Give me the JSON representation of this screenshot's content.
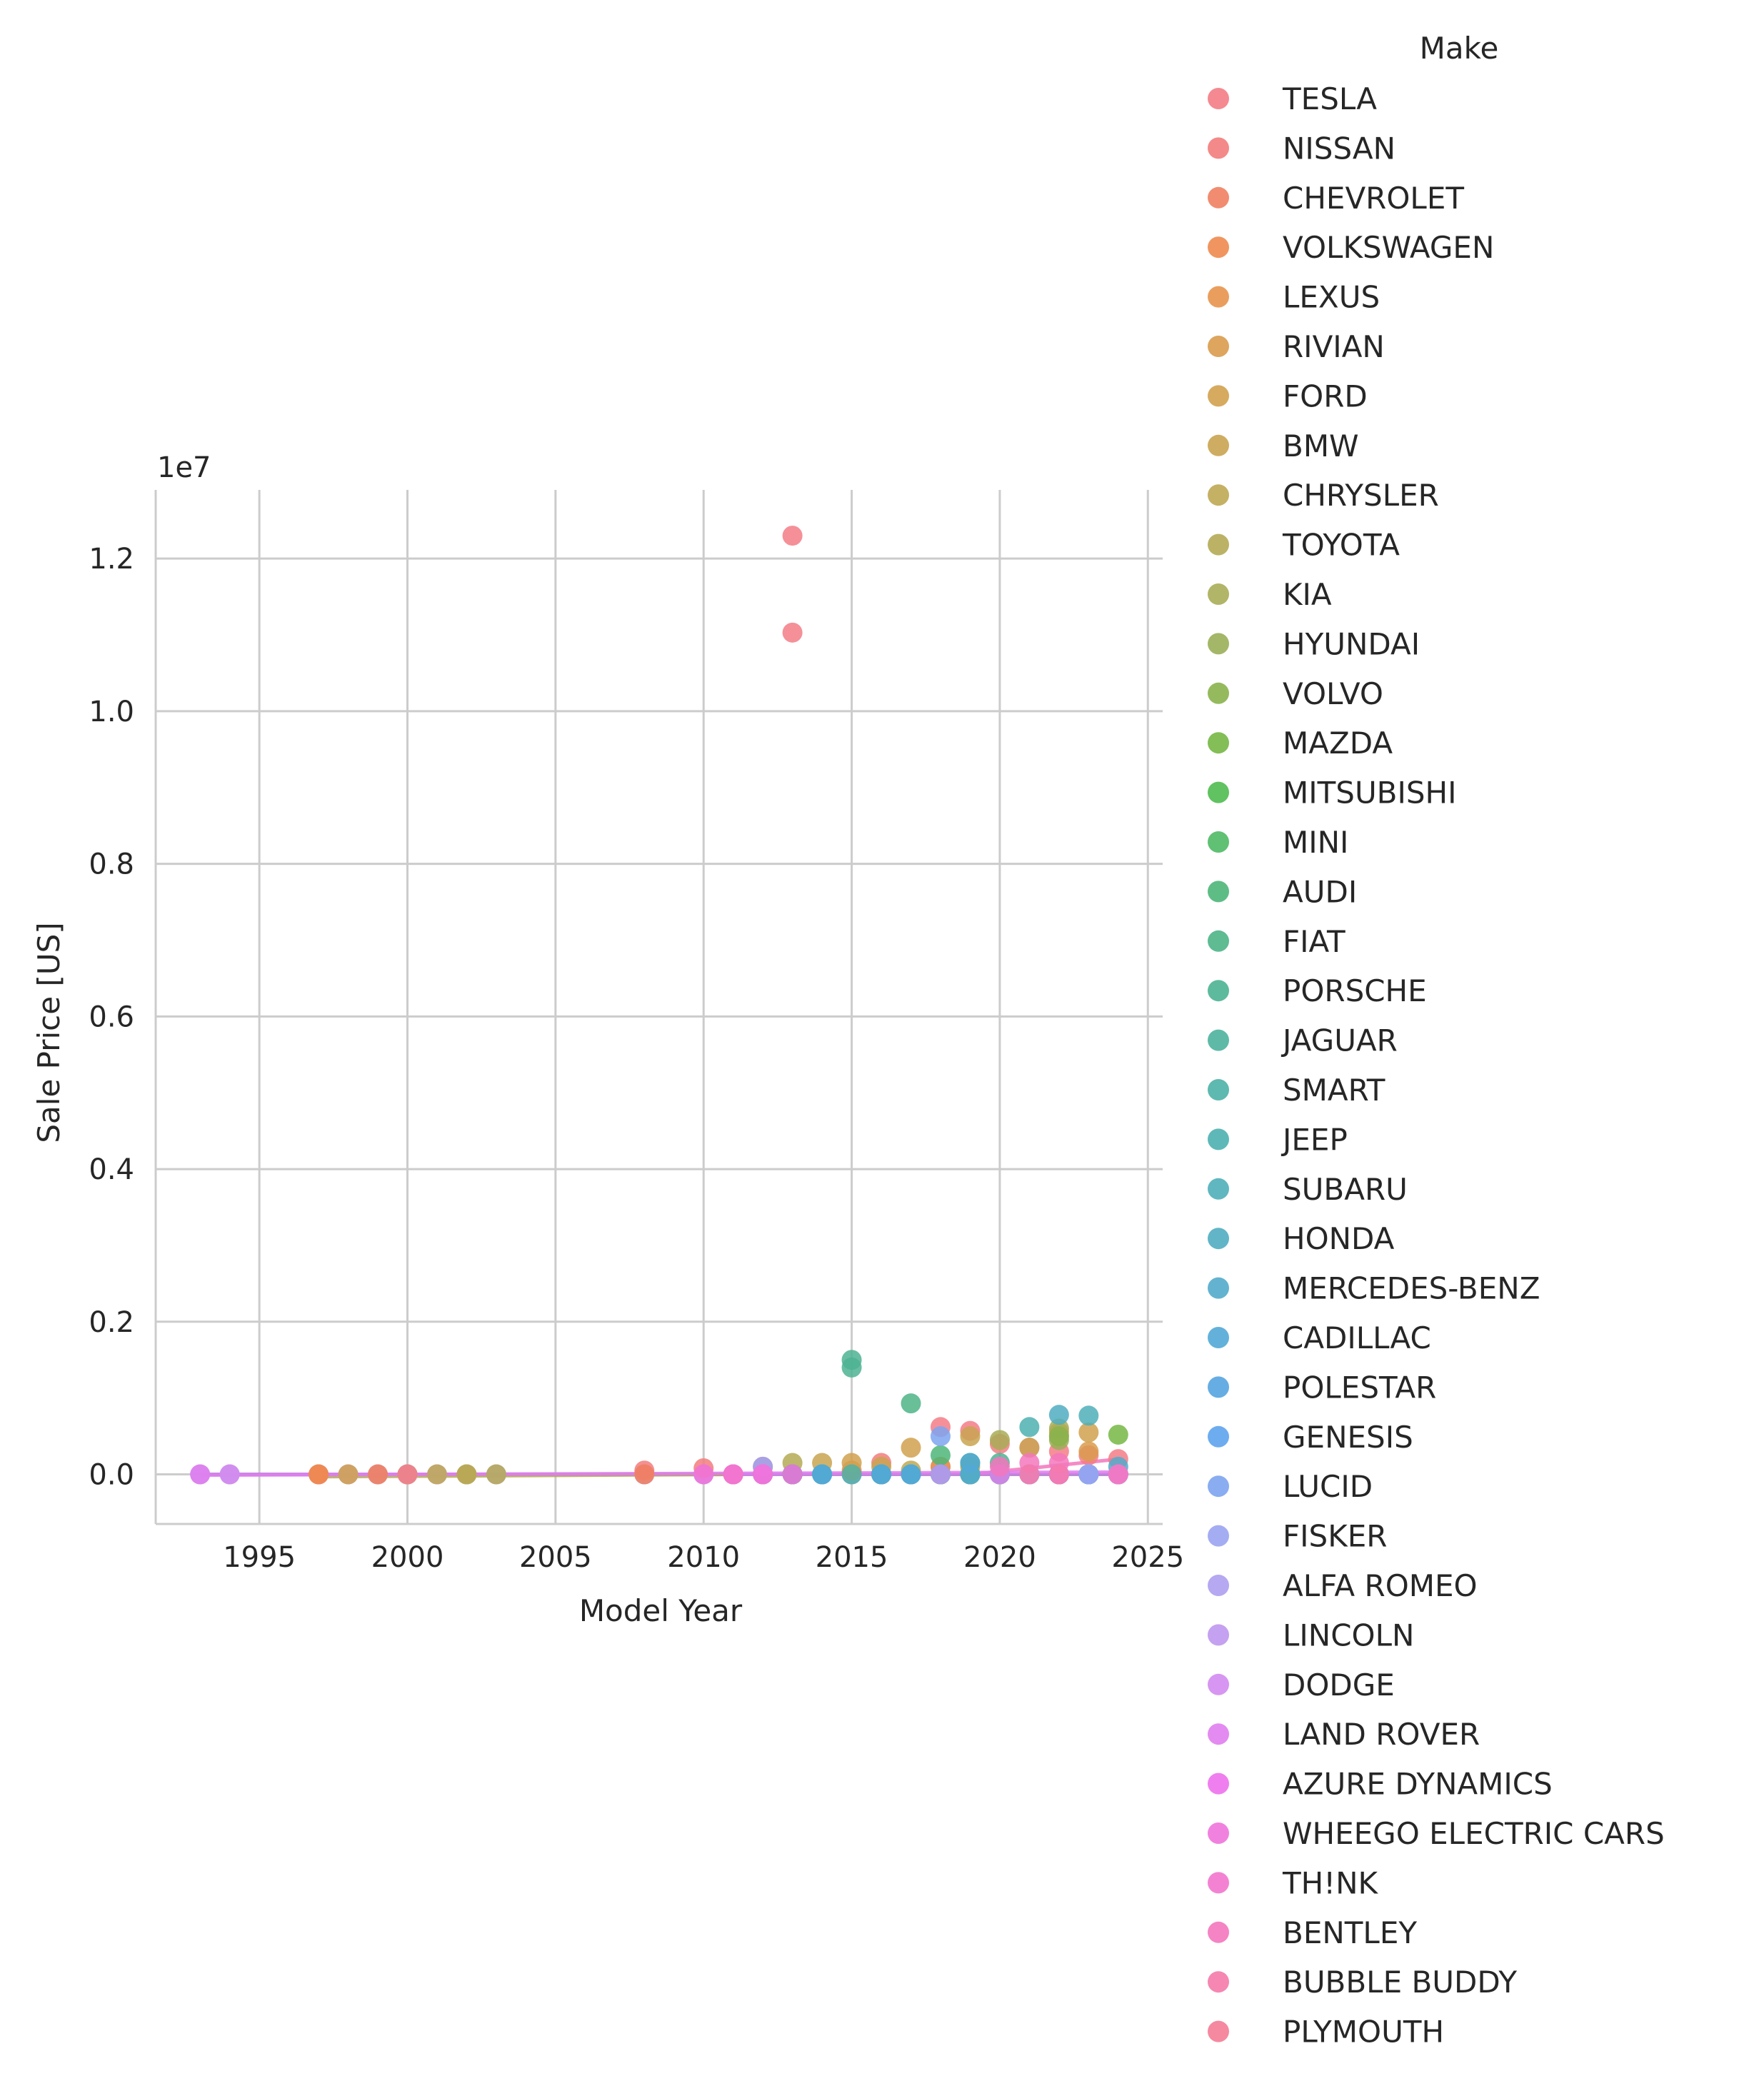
{
  "chart_data": {
    "type": "scatter",
    "title": "",
    "xlabel": "Model Year",
    "ylabel": "Sale Price [US]",
    "y_offset_text": "1e7",
    "y_scale": 10000000,
    "xlim": [
      1991.5,
      2025.5
    ],
    "ylim": [
      -0.065,
      1.29
    ],
    "xticks": [
      1995,
      2000,
      2005,
      2010,
      2015,
      2020,
      2025
    ],
    "yticks": [
      0.0,
      0.2,
      0.4,
      0.6,
      0.8,
      1.0,
      1.2
    ],
    "ytick_labels": [
      "0.0",
      "0.2",
      "0.4",
      "0.6",
      "0.8",
      "1.0",
      "1.2"
    ],
    "grid": true,
    "legend_title": "Make",
    "legend_position": "right",
    "series": [
      {
        "name": "TESLA",
        "color": "#f37c86",
        "points": [
          [
            2013,
            1.23
          ],
          [
            2013,
            1.103
          ],
          [
            2018,
            0.062
          ],
          [
            2019,
            0.057
          ],
          [
            2020,
            0.04
          ],
          [
            2021,
            0.035
          ],
          [
            2022,
            0.03
          ],
          [
            2023,
            0.025
          ],
          [
            2024,
            0.02
          ],
          [
            2012,
            0.01
          ]
        ]
      },
      {
        "name": "NISSAN",
        "color": "#f37c7c",
        "points": [
          [
            2008,
            0.005
          ],
          [
            2010,
            0.008
          ],
          [
            2011,
            0.0
          ],
          [
            2012,
            0.0
          ],
          [
            2013,
            0.0
          ],
          [
            2016,
            0.015
          ],
          [
            2018,
            0.01
          ],
          [
            2019,
            0.0
          ],
          [
            2022,
            0.0
          ]
        ]
      },
      {
        "name": "CHEVROLET",
        "color": "#f08060",
        "points": [
          [
            1997,
            0.0
          ],
          [
            2008,
            0.0
          ],
          [
            2011,
            0.0
          ],
          [
            2013,
            0.0
          ],
          [
            2016,
            0.0
          ],
          [
            2017,
            0.0
          ],
          [
            2019,
            0.0
          ],
          [
            2022,
            0.0
          ]
        ]
      },
      {
        "name": "VOLKSWAGEN",
        "color": "#ee8a4f",
        "points": [
          [
            1997,
            0.0
          ],
          [
            2015,
            0.005
          ],
          [
            2016,
            0.0
          ],
          [
            2019,
            0.0
          ],
          [
            2022,
            0.0
          ]
        ]
      },
      {
        "name": "LEXUS",
        "color": "#e8934d",
        "points": [
          [
            2018,
            0.01
          ],
          [
            2019,
            0.0
          ],
          [
            2022,
            0.0
          ]
        ]
      },
      {
        "name": "RIVIAN",
        "color": "#d99b4d",
        "points": [
          [
            2022,
            0.05
          ],
          [
            2023,
            0.03
          ],
          [
            2024,
            0.0
          ]
        ]
      },
      {
        "name": "FORD",
        "color": "#d1a14e",
        "points": [
          [
            1998,
            0.0
          ],
          [
            2000,
            0.0
          ],
          [
            2002,
            0.0
          ],
          [
            2015,
            0.015
          ],
          [
            2017,
            0.035
          ],
          [
            2022,
            0.055
          ],
          [
            2023,
            0.055
          ]
        ]
      },
      {
        "name": "BMW",
        "color": "#c9a451",
        "points": [
          [
            2014,
            0.015
          ],
          [
            2016,
            0.01
          ],
          [
            2019,
            0.05
          ],
          [
            2021,
            0.035
          ]
        ]
      },
      {
        "name": "CHRYSLER",
        "color": "#bfa853",
        "points": [
          [
            2001,
            0.0
          ],
          [
            2017,
            0.005
          ],
          [
            2019,
            0.01
          ],
          [
            2022,
            0.0
          ]
        ]
      },
      {
        "name": "TOYOTA",
        "color": "#b5aa55",
        "points": [
          [
            2000,
            0.0
          ],
          [
            2002,
            0.0
          ],
          [
            2003,
            0.0
          ],
          [
            2013,
            0.015
          ],
          [
            2019,
            0.0
          ],
          [
            2021,
            0.0
          ]
        ]
      },
      {
        "name": "KIA",
        "color": "#a8ad56",
        "points": [
          [
            2018,
            0.0
          ],
          [
            2019,
            0.0
          ],
          [
            2020,
            0.045
          ],
          [
            2022,
            0.06
          ]
        ]
      },
      {
        "name": "HYUNDAI",
        "color": "#9aaf58",
        "points": [
          [
            2019,
            0.0
          ],
          [
            2022,
            0.045
          ],
          [
            2023,
            0.0
          ]
        ]
      },
      {
        "name": "VOLVO",
        "color": "#89b34c",
        "points": [
          [
            2018,
            0.0
          ],
          [
            2022,
            0.05
          ],
          [
            2023,
            0.0
          ]
        ]
      },
      {
        "name": "MAZDA",
        "color": "#75b744",
        "points": [
          [
            2021,
            0.0
          ],
          [
            2024,
            0.052
          ]
        ]
      },
      {
        "name": "MITSUBISHI",
        "color": "#4fbb4f",
        "points": [
          [
            2012,
            0.0
          ],
          [
            2018,
            0.0
          ],
          [
            2022,
            0.0
          ]
        ]
      },
      {
        "name": "MINI",
        "color": "#4fb965",
        "points": [
          [
            2018,
            0.0
          ],
          [
            2020,
            0.0
          ],
          [
            2022,
            0.0
          ]
        ]
      },
      {
        "name": "AUDI",
        "color": "#4db678",
        "points": [
          [
            2016,
            0.0
          ],
          [
            2018,
            0.025
          ],
          [
            2019,
            0.015
          ],
          [
            2022,
            0.0
          ]
        ]
      },
      {
        "name": "FIAT",
        "color": "#4db486",
        "points": [
          [
            2013,
            0.0
          ],
          [
            2014,
            0.0
          ],
          [
            2016,
            0.0
          ],
          [
            2017,
            0.093
          ]
        ]
      },
      {
        "name": "PORSCHE",
        "color": "#4db392",
        "points": [
          [
            2015,
            0.15
          ],
          [
            2015,
            0.14
          ],
          [
            2020,
            0.015
          ],
          [
            2022,
            0.0
          ]
        ]
      },
      {
        "name": "JAGUAR",
        "color": "#4db29d",
        "points": [
          [
            2019,
            0.0
          ],
          [
            2020,
            0.0
          ]
        ]
      },
      {
        "name": "SMART",
        "color": "#4db1a7",
        "points": [
          [
            2013,
            0.0
          ],
          [
            2015,
            0.0
          ],
          [
            2017,
            0.0
          ],
          [
            2018,
            0.0
          ]
        ]
      },
      {
        "name": "JEEP",
        "color": "#4eb0b0",
        "points": [
          [
            2021,
            0.062
          ],
          [
            2022,
            0.0
          ],
          [
            2023,
            0.0
          ]
        ]
      },
      {
        "name": "SUBARU",
        "color": "#4fafb9",
        "points": [
          [
            2019,
            0.0
          ],
          [
            2023,
            0.077
          ]
        ]
      },
      {
        "name": "HONDA",
        "color": "#50adc1",
        "points": [
          [
            2014,
            0.0
          ],
          [
            2022,
            0.078
          ],
          [
            2024,
            0.0
          ]
        ]
      },
      {
        "name": "MERCEDES-BENZ",
        "color": "#52abcb",
        "points": [
          [
            2014,
            0.0
          ],
          [
            2016,
            0.0
          ],
          [
            2017,
            0.0
          ],
          [
            2018,
            0.0
          ],
          [
            2019,
            0.0
          ],
          [
            2022,
            0.0
          ],
          [
            2024,
            0.01
          ]
        ]
      },
      {
        "name": "CADILLAC",
        "color": "#52a8d6",
        "points": [
          [
            2014,
            0.0
          ],
          [
            2016,
            0.0
          ],
          [
            2017,
            0.0
          ],
          [
            2019,
            0.015
          ],
          [
            2023,
            0.0
          ]
        ]
      },
      {
        "name": "POLESTAR",
        "color": "#55a4e0",
        "points": [
          [
            2021,
            0.0
          ],
          [
            2022,
            0.0
          ],
          [
            2024,
            0.0
          ]
        ]
      },
      {
        "name": "GENESIS",
        "color": "#5ea3ee",
        "points": [
          [
            2023,
            0.0
          ],
          [
            2024,
            0.0
          ]
        ]
      },
      {
        "name": "LUCID",
        "color": "#7da4f0",
        "points": [
          [
            2018,
            0.05
          ],
          [
            2022,
            0.0
          ],
          [
            2023,
            0.0
          ]
        ]
      },
      {
        "name": "FISKER",
        "color": "#9aa4f1",
        "points": [
          [
            2012,
            0.01
          ],
          [
            2023,
            0.0
          ]
        ]
      },
      {
        "name": "ALFA ROMEO",
        "color": "#ae9ef0",
        "points": [
          [
            2024,
            0.0
          ]
        ]
      },
      {
        "name": "LINCOLN",
        "color": "#bf97ef",
        "points": [
          [
            2018,
            0.0
          ],
          [
            2021,
            0.0
          ],
          [
            2022,
            0.0
          ]
        ]
      },
      {
        "name": "DODGE",
        "color": "#d38bef",
        "points": [
          [
            2024,
            0.0
          ]
        ]
      },
      {
        "name": "LAND ROVER",
        "color": "#e07ef0",
        "points": [
          [
            2020,
            0.0
          ],
          [
            2022,
            0.0
          ]
        ]
      },
      {
        "name": "AZURE DYNAMICS",
        "color": "#ed71ed",
        "points": [
          [
            2011,
            0.0
          ],
          [
            2012,
            0.0
          ]
        ]
      },
      {
        "name": "WHEEGO ELECTRIC CARS",
        "color": "#f073dc",
        "points": [
          [
            2010,
            0.0
          ],
          [
            2011,
            0.0
          ],
          [
            2012,
            0.0
          ],
          [
            2013,
            0.0
          ]
        ]
      },
      {
        "name": "TH!NK",
        "color": "#f275cd",
        "points": [
          [
            2011,
            0.0
          ]
        ]
      },
      {
        "name": "BENTLEY",
        "color": "#f377bd",
        "points": [
          [
            2020,
            0.01
          ],
          [
            2021,
            0.015
          ],
          [
            2022,
            0.015
          ],
          [
            2024,
            0.0
          ]
        ]
      },
      {
        "name": "BUBBLE BUDDY",
        "color": "#f47aaa",
        "points": [
          [
            2021,
            0.0
          ],
          [
            2022,
            0.0
          ]
        ]
      },
      {
        "name": "PLYMOUTH",
        "color": "#f47c95",
        "points": [
          [
            2000,
            0.0
          ]
        ]
      }
    ],
    "flat_points_grey": [
      [
        1993,
        0.0
      ],
      [
        1994,
        0.0
      ],
      [
        1997,
        0.0
      ],
      [
        1998,
        0.0
      ],
      [
        1999,
        0.0
      ],
      [
        2000,
        0.0
      ],
      [
        2001,
        0.0
      ],
      [
        2002,
        0.0
      ],
      [
        2003,
        0.0
      ],
      [
        2008,
        0.0
      ],
      [
        2010,
        0.0
      ],
      [
        2011,
        0.0
      ],
      [
        2012,
        0.0
      ],
      [
        2013,
        0.0
      ],
      [
        2014,
        0.0
      ],
      [
        2015,
        0.0
      ],
      [
        2016,
        0.0
      ],
      [
        2017,
        0.0
      ],
      [
        2018,
        0.0
      ],
      [
        2019,
        0.0
      ],
      [
        2020,
        0.0
      ],
      [
        2021,
        0.0
      ],
      [
        2022,
        0.0
      ],
      [
        2023,
        0.0
      ],
      [
        2024,
        0.0
      ]
    ],
    "early_points": [
      {
        "make": "LAND ROVER",
        "x": 1993,
        "y": 0.0
      },
      {
        "make": "DODGE",
        "x": 1994,
        "y": 0.0
      },
      {
        "make": "CHEVROLET",
        "x": 1999,
        "y": 0.0
      }
    ],
    "trend_lines": [
      {
        "make": "BENTLEY",
        "color": "#f377bd",
        "x": [
          2019,
          2024
        ],
        "y": [
          0.0,
          0.02
        ]
      },
      {
        "make": "TOYOTA",
        "color": "#b5aa55",
        "x": [
          1997,
          2011
        ],
        "y": [
          -0.003,
          0.0
        ]
      },
      {
        "make": "LAND ROVER",
        "color": "#e07ef0",
        "x": [
          1993,
          2024
        ],
        "y": [
          -0.001,
          0.003
        ]
      }
    ]
  }
}
